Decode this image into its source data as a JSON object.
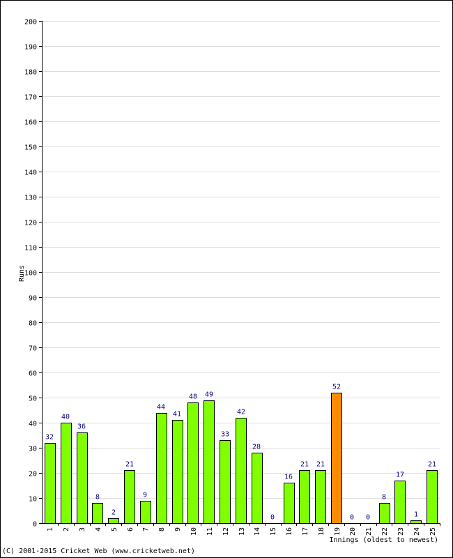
{
  "credit": "(C) 2001-2015 Cricket Web (www.cricketweb.net)",
  "colors": {
    "bar": "#80ff00",
    "highlight": "#ff8c00",
    "bar_stroke": "#000000",
    "grid": "#dddddd",
    "value_label": "#000080"
  },
  "chart_data": {
    "type": "bar",
    "xlabel": "Innings (oldest to newest)",
    "ylabel": "Runs",
    "ylim": [
      0,
      200
    ],
    "ytick_step": 10,
    "grid": true,
    "categories": [
      "1",
      "2",
      "3",
      "4",
      "5",
      "6",
      "7",
      "8",
      "9",
      "10",
      "11",
      "12",
      "13",
      "14",
      "15",
      "16",
      "17",
      "18",
      "19",
      "20",
      "21",
      "22",
      "23",
      "24",
      "25"
    ],
    "values": [
      32,
      40,
      36,
      8,
      2,
      21,
      9,
      44,
      41,
      48,
      49,
      33,
      42,
      28,
      0,
      16,
      21,
      21,
      52,
      0,
      0,
      8,
      17,
      1,
      21
    ],
    "highlight_index": 18
  }
}
